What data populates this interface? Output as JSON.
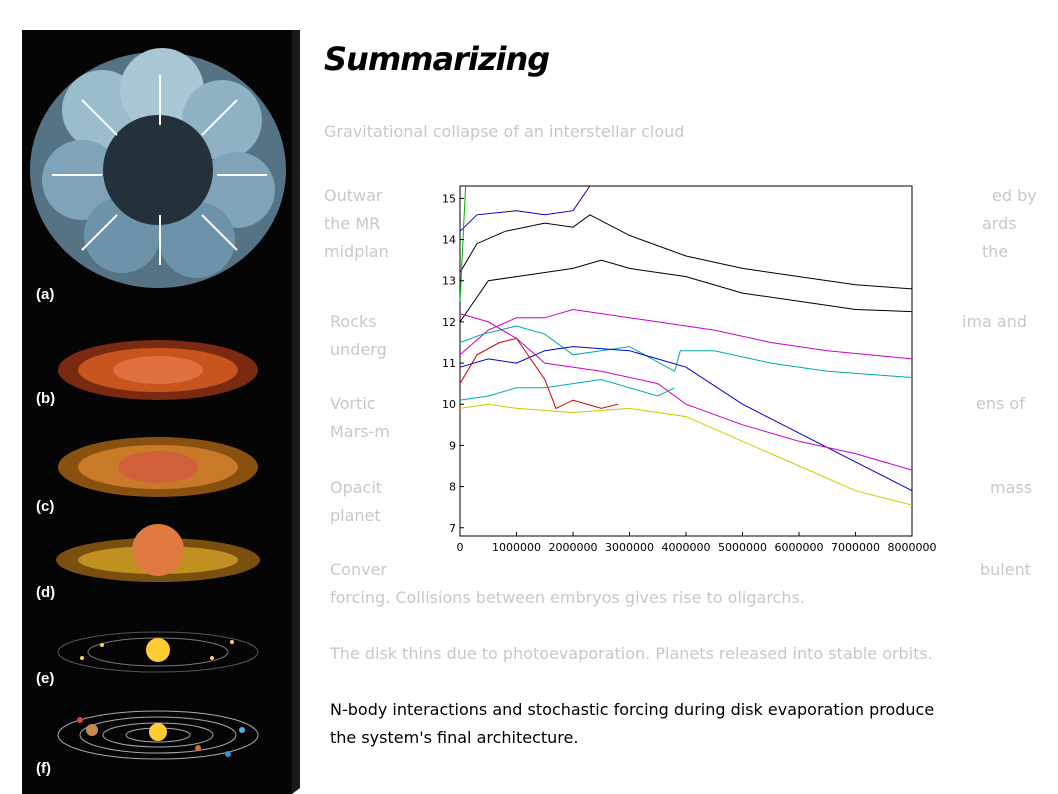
{
  "slide": {
    "title": "Summarizing",
    "paragraphs": [
      {
        "id": "p1",
        "text": "Gravitational collapse of an interstellar cloud"
      },
      {
        "id": "p2",
        "line1": "Outwar",
        "line1_right": "ed by",
        "line2": "the MR",
        "line2_right": "ards the",
        "line3": "midplan"
      },
      {
        "id": "p3",
        "line1": "Rocks",
        "line1_right": "ima and",
        "line2": "underg"
      },
      {
        "id": "p4",
        "line1": "Vortic",
        "line1_right": "ens of",
        "line2": "Mars-m"
      },
      {
        "id": "p5",
        "line1": "Opacit",
        "line1_right": "mass",
        "line2": "planet"
      },
      {
        "id": "p6",
        "line1": "Conver",
        "line1_right": "bulent",
        "line2": "forcing. Collisions between embryos gives rise to oligarchs."
      },
      {
        "id": "p7",
        "text": "The disk thins due to photoevaporation. Planets released into stable orbits."
      },
      {
        "id": "p8",
        "line1": "N-body interactions and stochastic forcing during disk evaporation produce",
        "line2": "the system's final architecture."
      }
    ]
  },
  "illustration": {
    "labels": [
      "(a)",
      "(b)",
      "(c)",
      "(d)",
      "(e)",
      "(f)"
    ],
    "colors": {
      "background": "#050505",
      "cloud": "#8fb6c8",
      "disk": "#c8541e",
      "sun": "#ffcc33"
    }
  },
  "chart_data": {
    "type": "line",
    "xlim": [
      0,
      8000000
    ],
    "ylim": [
      6.8,
      15.3
    ],
    "xticks": [
      "0",
      "1000000",
      "2000000",
      "3000000",
      "4000000",
      "5000000",
      "6000000",
      "7000000",
      "8000000"
    ],
    "yticks": [
      "7",
      "8",
      "9",
      "10",
      "11",
      "12",
      "13",
      "14",
      "15"
    ],
    "series": [
      {
        "color": "#000000",
        "points": [
          [
            0,
            13.2
          ],
          [
            300000,
            13.9
          ],
          [
            800000,
            14.2
          ],
          [
            1500000,
            14.4
          ],
          [
            2000000,
            14.3
          ],
          [
            2300000,
            14.6
          ],
          [
            3000000,
            14.1
          ],
          [
            4000000,
            13.6
          ],
          [
            5000000,
            13.3
          ],
          [
            6000000,
            13.1
          ],
          [
            7000000,
            12.9
          ],
          [
            8000000,
            12.8
          ]
        ]
      },
      {
        "color": "#000000",
        "points": [
          [
            0,
            12.0
          ],
          [
            500000,
            13.0
          ],
          [
            1000000,
            13.1
          ],
          [
            1500000,
            13.2
          ],
          [
            2000000,
            13.3
          ],
          [
            2500000,
            13.5
          ],
          [
            3000000,
            13.3
          ],
          [
            4000000,
            13.1
          ],
          [
            5000000,
            12.7
          ],
          [
            6000000,
            12.5
          ],
          [
            7000000,
            12.3
          ],
          [
            8000000,
            12.25
          ]
        ]
      },
      {
        "color": "#0000cc",
        "points": [
          [
            0,
            14.2
          ],
          [
            300000,
            14.6
          ],
          [
            1000000,
            14.7
          ],
          [
            1500000,
            14.6
          ],
          [
            2000000,
            14.7
          ],
          [
            2300000,
            15.3
          ]
        ]
      },
      {
        "color": "#cc00cc",
        "points": [
          [
            0,
            11.2
          ],
          [
            500000,
            11.8
          ],
          [
            1000000,
            12.1
          ],
          [
            1500000,
            12.1
          ],
          [
            2000000,
            12.3
          ],
          [
            2500000,
            12.2
          ],
          [
            3500000,
            12.0
          ],
          [
            4500000,
            11.8
          ],
          [
            5500000,
            11.5
          ],
          [
            6500000,
            11.3
          ],
          [
            8000000,
            11.1
          ]
        ]
      },
      {
        "color": "#00aaaa",
        "points": [
          [
            0,
            11.5
          ],
          [
            400000,
            11.7
          ],
          [
            1000000,
            11.9
          ],
          [
            1500000,
            11.7
          ],
          [
            2000000,
            11.2
          ],
          [
            3000000,
            11.4
          ],
          [
            3800000,
            10.8
          ],
          [
            3900000,
            11.3
          ],
          [
            4500000,
            11.3
          ],
          [
            5500000,
            11.0
          ],
          [
            6500000,
            10.8
          ],
          [
            8000000,
            10.65
          ]
        ]
      },
      {
        "color": "#0000cc",
        "points": [
          [
            0,
            10.9
          ],
          [
            500000,
            11.1
          ],
          [
            1000000,
            11.0
          ],
          [
            1500000,
            11.3
          ],
          [
            2000000,
            11.4
          ],
          [
            3000000,
            11.3
          ],
          [
            4000000,
            10.9
          ],
          [
            5000000,
            10.0
          ],
          [
            6000000,
            9.3
          ],
          [
            7000000,
            8.6
          ],
          [
            8000000,
            7.9
          ]
        ]
      },
      {
        "color": "#cc00cc",
        "points": [
          [
            0,
            12.2
          ],
          [
            500000,
            12.0
          ],
          [
            1000000,
            11.6
          ],
          [
            1500000,
            11.0
          ],
          [
            2500000,
            10.8
          ],
          [
            3500000,
            10.5
          ],
          [
            4000000,
            10.0
          ],
          [
            5000000,
            9.5
          ],
          [
            6000000,
            9.1
          ],
          [
            7000000,
            8.8
          ],
          [
            8000000,
            8.4
          ]
        ]
      },
      {
        "color": "#cc0000",
        "points": [
          [
            0,
            10.5
          ],
          [
            300000,
            11.2
          ],
          [
            700000,
            11.5
          ],
          [
            1000000,
            11.6
          ],
          [
            1500000,
            10.6
          ],
          [
            1700000,
            9.9
          ],
          [
            2000000,
            10.1
          ],
          [
            2500000,
            9.9
          ],
          [
            2800000,
            10.0
          ]
        ]
      },
      {
        "color": "#00aaaa",
        "points": [
          [
            0,
            10.1
          ],
          [
            500000,
            10.2
          ],
          [
            1000000,
            10.4
          ],
          [
            1500000,
            10.4
          ],
          [
            2000000,
            10.5
          ],
          [
            2500000,
            10.6
          ],
          [
            3000000,
            10.4
          ],
          [
            3500000,
            10.2
          ],
          [
            3800000,
            10.4
          ]
        ]
      },
      {
        "color": "#cccc00",
        "points": [
          [
            0,
            9.9
          ],
          [
            500000,
            10.0
          ],
          [
            1000000,
            9.9
          ],
          [
            2000000,
            9.8
          ],
          [
            3000000,
            9.9
          ],
          [
            4000000,
            9.7
          ],
          [
            5000000,
            9.1
          ],
          [
            6000000,
            8.5
          ],
          [
            7000000,
            7.9
          ],
          [
            8000000,
            7.55
          ]
        ]
      },
      {
        "color": "#00aa00",
        "points": [
          [
            0,
            12.5
          ],
          [
            100000,
            15.3
          ]
        ]
      }
    ]
  }
}
